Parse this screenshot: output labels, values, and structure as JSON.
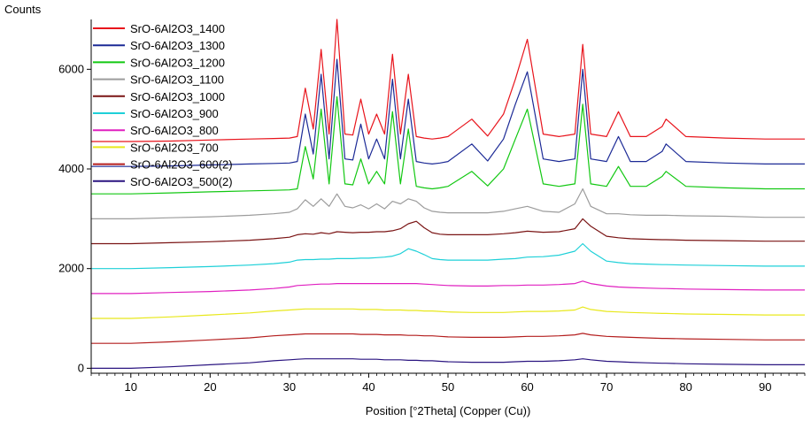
{
  "chart_data": {
    "type": "line",
    "xlabel": "Position [°2Theta] (Copper (Cu))",
    "ylabel": "Counts",
    "xlim": [
      5,
      95
    ],
    "ylim": [
      -100,
      7000
    ],
    "x_ticks": [
      10,
      20,
      30,
      40,
      50,
      60,
      70,
      80,
      90
    ],
    "y_ticks": [
      0,
      2000,
      4000,
      6000
    ],
    "grid": false,
    "legend_position": "top-left",
    "x": [
      5,
      10,
      15,
      20,
      25,
      28,
      30,
      31,
      32,
      33,
      34,
      35,
      36,
      37,
      38,
      39,
      40,
      41,
      42,
      43,
      44,
      45,
      46,
      47,
      48,
      49,
      50,
      53,
      55,
      57,
      58.5,
      60,
      62,
      64,
      66,
      67,
      68,
      70,
      71.5,
      73,
      75,
      77,
      77.5,
      80,
      85,
      90,
      95
    ],
    "series": [
      {
        "name": "SrO-6Al2O3_1400",
        "color": "#e8141c",
        "values": [
          4550,
          4550,
          4560,
          4580,
          4600,
          4610,
          4620,
          4650,
          5620,
          4800,
          6400,
          4700,
          7000,
          4700,
          4680,
          5400,
          4700,
          5100,
          4700,
          6300,
          4700,
          5900,
          4650,
          4620,
          4600,
          4620,
          4650,
          5000,
          4660,
          5100,
          5800,
          6600,
          4700,
          4650,
          4700,
          6500,
          4700,
          4650,
          5150,
          4650,
          4650,
          4850,
          5000,
          4650,
          4620,
          4600,
          4600
        ]
      },
      {
        "name": "SrO-6Al2O3_1300",
        "color": "#1c2a96",
        "values": [
          4050,
          4050,
          4060,
          4080,
          4100,
          4110,
          4120,
          4150,
          5100,
          4300,
          5900,
          4200,
          6200,
          4200,
          4180,
          4900,
          4200,
          4600,
          4200,
          5800,
          4200,
          5400,
          4150,
          4120,
          4100,
          4120,
          4150,
          4500,
          4160,
          4600,
          5300,
          5950,
          4200,
          4150,
          4200,
          6000,
          4200,
          4150,
          4650,
          4150,
          4150,
          4350,
          4500,
          4150,
          4120,
          4100,
          4100
        ]
      },
      {
        "name": "SrO-6Al2O3_1200",
        "color": "#12c812",
        "values": [
          3500,
          3500,
          3520,
          3540,
          3560,
          3570,
          3580,
          3600,
          4450,
          3800,
          5200,
          3700,
          5450,
          3700,
          3680,
          4200,
          3700,
          3950,
          3700,
          5150,
          3700,
          4800,
          3650,
          3620,
          3600,
          3620,
          3650,
          3950,
          3660,
          4000,
          4600,
          5200,
          3700,
          3650,
          3700,
          5300,
          3700,
          3650,
          4050,
          3650,
          3650,
          3850,
          3950,
          3650,
          3620,
          3600,
          3600
        ]
      },
      {
        "name": "SrO-6Al2O3_1100",
        "color": "#9c9c9c",
        "values": [
          3000,
          3000,
          3020,
          3040,
          3070,
          3100,
          3130,
          3200,
          3380,
          3250,
          3400,
          3250,
          3500,
          3250,
          3220,
          3280,
          3200,
          3300,
          3200,
          3350,
          3300,
          3400,
          3350,
          3220,
          3150,
          3130,
          3120,
          3120,
          3120,
          3150,
          3200,
          3250,
          3150,
          3130,
          3300,
          3600,
          3250,
          3100,
          3100,
          3080,
          3070,
          3070,
          3070,
          3060,
          3050,
          3030,
          3030
        ]
      },
      {
        "name": "SrO-6Al2O3_1000",
        "color": "#7a1414",
        "values": [
          2500,
          2500,
          2520,
          2540,
          2570,
          2600,
          2630,
          2680,
          2700,
          2690,
          2720,
          2700,
          2740,
          2730,
          2720,
          2730,
          2730,
          2740,
          2740,
          2760,
          2800,
          2900,
          2950,
          2820,
          2720,
          2690,
          2680,
          2680,
          2680,
          2700,
          2720,
          2750,
          2730,
          2740,
          2800,
          3000,
          2850,
          2650,
          2620,
          2600,
          2590,
          2580,
          2580,
          2570,
          2560,
          2550,
          2550
        ]
      },
      {
        "name": "SrO-6Al2O3_900",
        "color": "#1ed0d8",
        "values": [
          2000,
          2000,
          2020,
          2040,
          2070,
          2100,
          2130,
          2170,
          2180,
          2180,
          2190,
          2190,
          2200,
          2200,
          2200,
          2210,
          2210,
          2220,
          2230,
          2250,
          2300,
          2400,
          2350,
          2280,
          2200,
          2180,
          2170,
          2170,
          2170,
          2190,
          2200,
          2230,
          2240,
          2270,
          2350,
          2500,
          2350,
          2150,
          2120,
          2100,
          2090,
          2080,
          2080,
          2070,
          2060,
          2050,
          2050
        ]
      },
      {
        "name": "SrO-6Al2O3_800",
        "color": "#e020c0",
        "values": [
          1500,
          1500,
          1520,
          1540,
          1570,
          1600,
          1630,
          1660,
          1670,
          1680,
          1690,
          1690,
          1700,
          1700,
          1700,
          1700,
          1700,
          1700,
          1700,
          1700,
          1700,
          1700,
          1700,
          1690,
          1680,
          1670,
          1660,
          1650,
          1650,
          1660,
          1660,
          1670,
          1670,
          1680,
          1700,
          1750,
          1700,
          1650,
          1630,
          1620,
          1610,
          1600,
          1600,
          1590,
          1580,
          1570,
          1570
        ]
      },
      {
        "name": "SrO-6Al2O3_700",
        "color": "#e8e81c",
        "values": [
          1000,
          1000,
          1030,
          1070,
          1110,
          1150,
          1170,
          1180,
          1190,
          1190,
          1190,
          1190,
          1190,
          1190,
          1190,
          1180,
          1180,
          1180,
          1170,
          1170,
          1170,
          1160,
          1160,
          1150,
          1150,
          1140,
          1130,
          1120,
          1120,
          1120,
          1130,
          1140,
          1140,
          1150,
          1170,
          1230,
          1180,
          1140,
          1130,
          1120,
          1110,
          1100,
          1100,
          1090,
          1080,
          1070,
          1070
        ]
      },
      {
        "name": "SrO-6Al2O3_600(2)",
        "color": "#b41e1e",
        "values": [
          500,
          500,
          530,
          570,
          610,
          650,
          670,
          680,
          690,
          690,
          690,
          690,
          690,
          690,
          690,
          680,
          680,
          680,
          670,
          670,
          670,
          660,
          660,
          650,
          650,
          640,
          630,
          620,
          620,
          620,
          630,
          640,
          640,
          650,
          670,
          700,
          670,
          640,
          630,
          620,
          610,
          600,
          600,
          590,
          580,
          570,
          570
        ]
      },
      {
        "name": "SrO-6Al2O3_500(2)",
        "color": "#2a1480",
        "values": [
          0,
          0,
          30,
          70,
          110,
          150,
          170,
          180,
          190,
          190,
          190,
          190,
          190,
          190,
          190,
          180,
          180,
          180,
          170,
          170,
          170,
          160,
          160,
          150,
          150,
          140,
          130,
          120,
          120,
          120,
          130,
          140,
          140,
          150,
          170,
          190,
          170,
          140,
          130,
          120,
          110,
          100,
          100,
          90,
          80,
          70,
          70
        ]
      }
    ]
  }
}
